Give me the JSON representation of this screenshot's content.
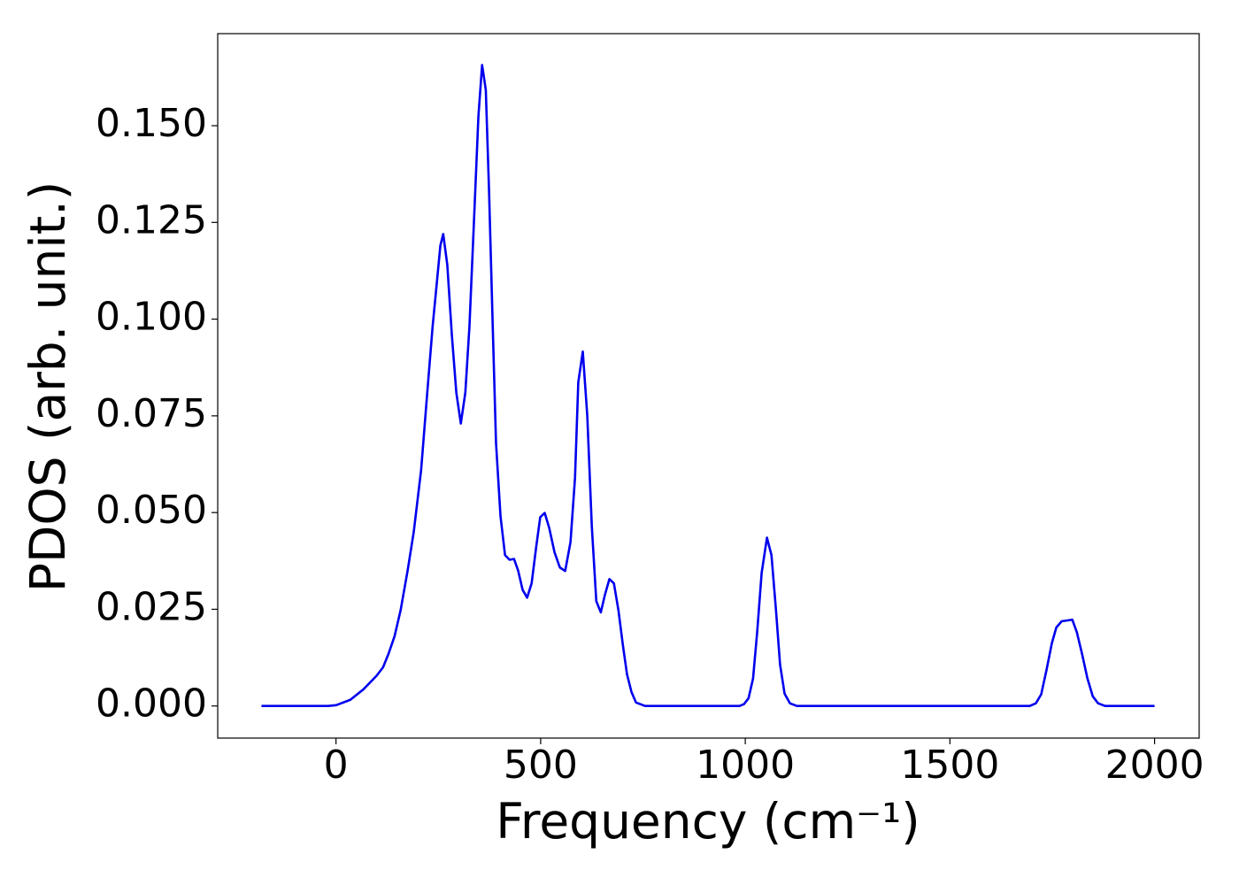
{
  "chart_data": {
    "type": "line",
    "xlabel": "Frequency (cm⁻¹)",
    "ylabel": "PDOS (arb. unit.)",
    "x": [
      -182,
      -19,
      0,
      35,
      67,
      99,
      115,
      128,
      143,
      158,
      175,
      190,
      208,
      223,
      236,
      246,
      255,
      262,
      272,
      283,
      294,
      305,
      316,
      326,
      337,
      348,
      357,
      366,
      374,
      383,
      391,
      402,
      413,
      424,
      435,
      445,
      456,
      467,
      478,
      489,
      499,
      510,
      521,
      534,
      547,
      560,
      573,
      584,
      592,
      603,
      614,
      625,
      636,
      647,
      657,
      668,
      679,
      690,
      701,
      711,
      722,
      733,
      755,
      986,
      997,
      1008,
      1019,
      1029,
      1040,
      1053,
      1064,
      1075,
      1085,
      1096,
      1109,
      1126,
      1695,
      1710,
      1723,
      1736,
      1749,
      1760,
      1773,
      1786,
      1799,
      1810,
      1823,
      1836,
      1849,
      1862,
      1879,
      2000
    ],
    "series": [
      {
        "color": "#0000ee",
        "values": [
          0,
          0,
          0.0002,
          0.0016,
          0.0043,
          0.0078,
          0.01,
          0.0134,
          0.018,
          0.0248,
          0.035,
          0.045,
          0.061,
          0.081,
          0.098,
          0.109,
          0.119,
          0.122,
          0.114,
          0.096,
          0.081,
          0.073,
          0.081,
          0.098,
          0.125,
          0.1525,
          0.1657,
          0.1593,
          0.133,
          0.098,
          0.068,
          0.049,
          0.039,
          0.0378,
          0.038,
          0.035,
          0.03,
          0.028,
          0.0317,
          0.041,
          0.0488,
          0.0499,
          0.046,
          0.0397,
          0.0358,
          0.0349,
          0.0424,
          0.059,
          0.0837,
          0.0916,
          0.075,
          0.0465,
          0.0271,
          0.0242,
          0.0287,
          0.0328,
          0.0317,
          0.0248,
          0.0157,
          0.0082,
          0.0036,
          0.0009,
          0,
          0,
          0.0005,
          0.002,
          0.0071,
          0.019,
          0.0344,
          0.0435,
          0.039,
          0.0248,
          0.0107,
          0.0032,
          0.0007,
          0,
          0,
          0.0007,
          0.003,
          0.0093,
          0.0162,
          0.0203,
          0.0219,
          0.0221,
          0.0223,
          0.0191,
          0.0134,
          0.0071,
          0.0025,
          0.0007,
          0,
          0
        ]
      }
    ],
    "xlim": [
      -289,
      2109
    ],
    "ylim": [
      -0.0083,
      0.1738
    ],
    "xticks": [
      0,
      500,
      1000,
      1500,
      2000
    ],
    "yticks": [
      {
        "value": 0,
        "label": "0.000"
      },
      0.025,
      {
        "value": 0.05,
        "label": "0.050"
      },
      0.075,
      {
        "value": 0.1,
        "label": "0.100"
      },
      0.125,
      {
        "value": 0.15,
        "label": "0.150"
      }
    ]
  }
}
